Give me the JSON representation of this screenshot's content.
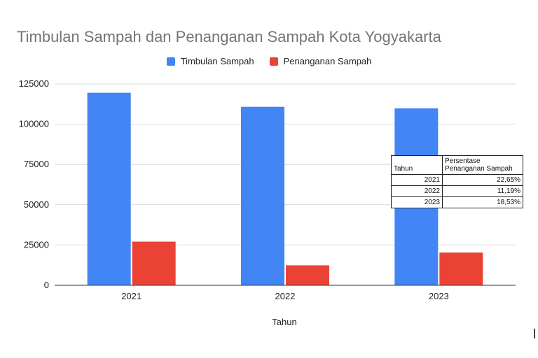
{
  "chart_data": {
    "type": "bar",
    "title": "Timbulan Sampah dan Penanganan Sampah Kota Yogyakarta",
    "xlabel": "Tahun",
    "ylabel": "",
    "categories": [
      "2021",
      "2022",
      "2023"
    ],
    "series": [
      {
        "name": "Timbulan Sampah",
        "color": "#4285f4",
        "values": [
          119500,
          110800,
          109800
        ]
      },
      {
        "name": "Penanganan Sampah",
        "color": "#ea4335",
        "values": [
          27100,
          12400,
          20300
        ]
      }
    ],
    "ylim": [
      0,
      125000
    ],
    "yticks": [
      "0",
      "25000",
      "50000",
      "75000",
      "100000",
      "125000"
    ],
    "grid": true,
    "legend_position": "top-center"
  },
  "table": {
    "header": [
      "Tahun",
      "Persentase Penanganan Sampah"
    ],
    "rows": [
      {
        "year": "2021",
        "percent": "22,65%"
      },
      {
        "year": "2022",
        "percent": "11,19%"
      },
      {
        "year": "2023",
        "percent": "18,53%"
      }
    ]
  }
}
